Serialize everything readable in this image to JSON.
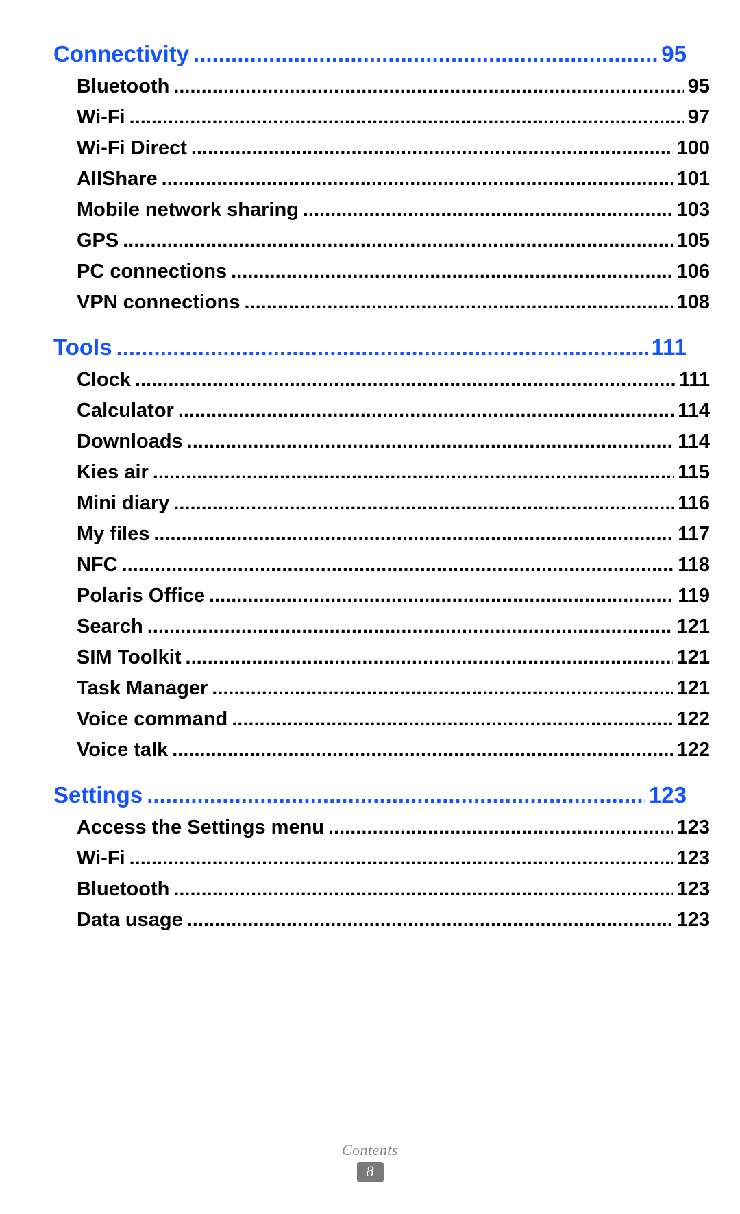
{
  "colors": {
    "section": "#1453ff",
    "item": "#000000",
    "footer_text": "#8a8a8a",
    "badge_bg": "#7a7a7a",
    "badge_fg": "#ffffff",
    "background": "#ffffff"
  },
  "leader_char": ".",
  "sections": [
    {
      "title": "Connectivity",
      "page": "95",
      "items": [
        {
          "label": "Bluetooth",
          "page": "95"
        },
        {
          "label": "Wi-Fi",
          "page": "97"
        },
        {
          "label": "Wi-Fi Direct",
          "page": "100"
        },
        {
          "label": "AllShare",
          "page": "101"
        },
        {
          "label": "Mobile network sharing",
          "page": "103"
        },
        {
          "label": "GPS",
          "page": "105"
        },
        {
          "label": "PC connections",
          "page": "106"
        },
        {
          "label": "VPN connections",
          "page": "108"
        }
      ]
    },
    {
      "title": "Tools",
      "page": "111",
      "items": [
        {
          "label": "Clock",
          "page": "111"
        },
        {
          "label": "Calculator",
          "page": "114"
        },
        {
          "label": "Downloads",
          "page": "114"
        },
        {
          "label": "Kies air",
          "page": "115"
        },
        {
          "label": "Mini diary",
          "page": "116"
        },
        {
          "label": "My files",
          "page": "117"
        },
        {
          "label": "NFC",
          "page": "118"
        },
        {
          "label": "Polaris Office",
          "page": "119"
        },
        {
          "label": "Search",
          "page": "121"
        },
        {
          "label": "SIM Toolkit",
          "page": "121"
        },
        {
          "label": "Task Manager",
          "page": "121"
        },
        {
          "label": "Voice command",
          "page": "122"
        },
        {
          "label": "Voice talk",
          "page": "122"
        }
      ]
    },
    {
      "title": "Settings",
      "page": "123",
      "items": [
        {
          "label": "Access the Settings menu",
          "page": "123"
        },
        {
          "label": "Wi-Fi",
          "page": "123"
        },
        {
          "label": "Bluetooth",
          "page": "123"
        },
        {
          "label": "Data usage",
          "page": "123"
        }
      ]
    }
  ],
  "footer": {
    "label": "Contents",
    "page_number": "8"
  }
}
